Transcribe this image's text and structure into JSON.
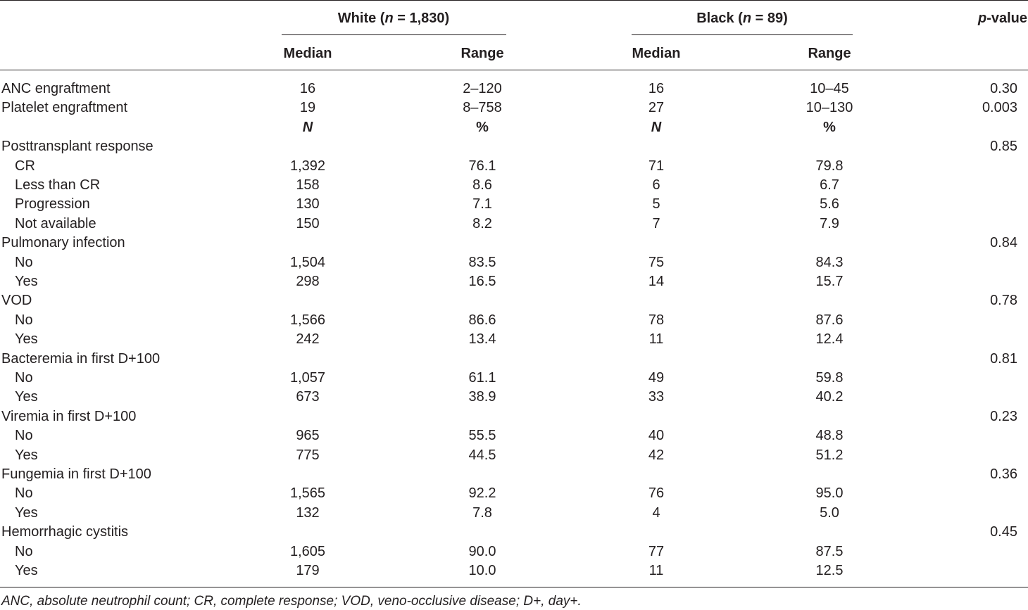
{
  "header": {
    "group1": {
      "prefix": "White (",
      "n_symbol": "n",
      "suffix": " = 1,830)"
    },
    "group2": {
      "prefix": "Black (",
      "n_symbol": "n",
      "suffix": " = 89)"
    },
    "pvalue": {
      "p_symbol": "p",
      "suffix": "-value"
    },
    "median1": "Median",
    "range1": "Range",
    "median2": "Median",
    "range2": "Range"
  },
  "rows": [
    {
      "label": "ANC engraftment",
      "indent": false,
      "c1": "16",
      "c2": "2–120",
      "c3": "16",
      "c4": "10–45",
      "p": "0.30"
    },
    {
      "label": "Platelet engraftment",
      "indent": false,
      "c1": "19",
      "c2": "8–758",
      "c3": "27",
      "c4": "10–130",
      "p": "0.003"
    },
    {
      "label": "",
      "indent": false,
      "c1": "N",
      "c2": "%",
      "c3": "N",
      "c4": "%",
      "p": "",
      "subheader": true
    },
    {
      "label": "Posttransplant response",
      "indent": false,
      "c1": "",
      "c2": "",
      "c3": "",
      "c4": "",
      "p": "0.85"
    },
    {
      "label": "CR",
      "indent": true,
      "c1": "1,392",
      "c2": "76.1",
      "c3": "71",
      "c4": "79.8",
      "p": ""
    },
    {
      "label": "Less than CR",
      "indent": true,
      "c1": "158",
      "c2": "8.6",
      "c3": "6",
      "c4": "6.7",
      "p": ""
    },
    {
      "label": "Progression",
      "indent": true,
      "c1": "130",
      "c2": "7.1",
      "c3": "5",
      "c4": "5.6",
      "p": ""
    },
    {
      "label": "Not available",
      "indent": true,
      "c1": "150",
      "c2": "8.2",
      "c3": "7",
      "c4": "7.9",
      "p": ""
    },
    {
      "label": "Pulmonary infection",
      "indent": false,
      "c1": "",
      "c2": "",
      "c3": "",
      "c4": "",
      "p": "0.84"
    },
    {
      "label": "No",
      "indent": true,
      "c1": "1,504",
      "c2": "83.5",
      "c3": "75",
      "c4": "84.3",
      "p": ""
    },
    {
      "label": "Yes",
      "indent": true,
      "c1": "298",
      "c2": "16.5",
      "c3": "14",
      "c4": "15.7",
      "p": ""
    },
    {
      "label": "VOD",
      "indent": false,
      "c1": "",
      "c2": "",
      "c3": "",
      "c4": "",
      "p": "0.78"
    },
    {
      "label": "No",
      "indent": true,
      "c1": "1,566",
      "c2": "86.6",
      "c3": "78",
      "c4": "87.6",
      "p": ""
    },
    {
      "label": "Yes",
      "indent": true,
      "c1": "242",
      "c2": "13.4",
      "c3": "11",
      "c4": "12.4",
      "p": ""
    },
    {
      "label": "Bacteremia in first D+100",
      "indent": false,
      "c1": "",
      "c2": "",
      "c3": "",
      "c4": "",
      "p": "0.81"
    },
    {
      "label": "No",
      "indent": true,
      "c1": "1,057",
      "c2": "61.1",
      "c3": "49",
      "c4": "59.8",
      "p": ""
    },
    {
      "label": "Yes",
      "indent": true,
      "c1": "673",
      "c2": "38.9",
      "c3": "33",
      "c4": "40.2",
      "p": ""
    },
    {
      "label": "Viremia in first D+100",
      "indent": false,
      "c1": "",
      "c2": "",
      "c3": "",
      "c4": "",
      "p": "0.23"
    },
    {
      "label": "No",
      "indent": true,
      "c1": "965",
      "c2": "55.5",
      "c3": "40",
      "c4": "48.8",
      "p": ""
    },
    {
      "label": "Yes",
      "indent": true,
      "c1": "775",
      "c2": "44.5",
      "c3": "42",
      "c4": "51.2",
      "p": ""
    },
    {
      "label": "Fungemia in first D+100",
      "indent": false,
      "c1": "",
      "c2": "",
      "c3": "",
      "c4": "",
      "p": "0.36"
    },
    {
      "label": "No",
      "indent": true,
      "c1": "1,565",
      "c2": "92.2",
      "c3": "76",
      "c4": "95.0",
      "p": ""
    },
    {
      "label": "Yes",
      "indent": true,
      "c1": "132",
      "c2": "7.8",
      "c3": "4",
      "c4": "5.0",
      "p": ""
    },
    {
      "label": "Hemorrhagic cystitis",
      "indent": false,
      "c1": "",
      "c2": "",
      "c3": "",
      "c4": "",
      "p": "0.45"
    },
    {
      "label": "No",
      "indent": true,
      "c1": "1,605",
      "c2": "90.0",
      "c3": "77",
      "c4": "87.5",
      "p": ""
    },
    {
      "label": "Yes",
      "indent": true,
      "c1": "179",
      "c2": "10.0",
      "c3": "11",
      "c4": "12.5",
      "p": ""
    }
  ],
  "footnote": "ANC, absolute neutrophil count; CR, complete response; VOD, veno-occlusive disease; D+, day+."
}
